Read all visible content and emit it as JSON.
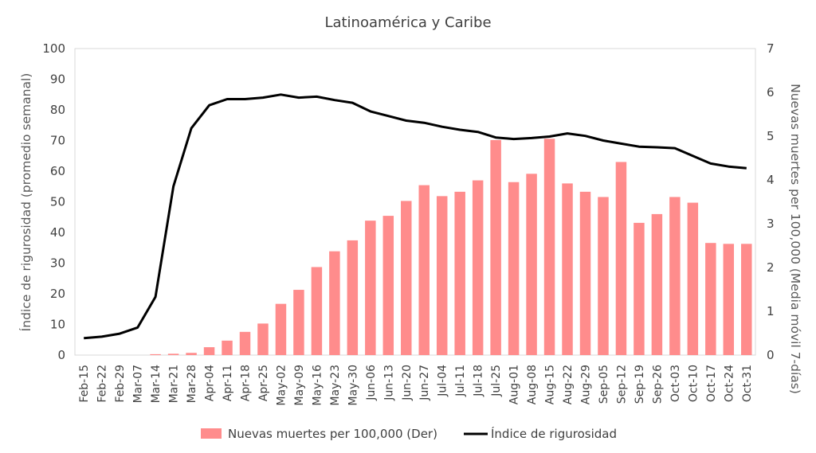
{
  "chart_data": {
    "type": "bar",
    "title": "Latinoamérica y Caribe",
    "ylabel_left": "Índice de rigurosidad (promedio semanal)",
    "ylabel_right": "Nuevas muertes per 100,000 (Media móvil 7-días)",
    "ylim_left": [
      0,
      100
    ],
    "ylim_right": [
      0,
      7
    ],
    "yticks_left": [
      "0",
      "10",
      "20",
      "30",
      "40",
      "50",
      "60",
      "70",
      "80",
      "90",
      "100"
    ],
    "yticks_right": [
      "0",
      "1",
      "2",
      "3",
      "4",
      "5",
      "6",
      "7"
    ],
    "categories": [
      "Feb-15",
      "Feb-22",
      "Feb-29",
      "Mar-07",
      "Mar-14",
      "Mar-21",
      "Mar-28",
      "Apr-04",
      "Apr-11",
      "Apr-18",
      "Apr-25",
      "May-02",
      "May-09",
      "May-16",
      "May-23",
      "May-30",
      "Jun-06",
      "Jun-13",
      "Jun-20",
      "Jun-27",
      "Jul-04",
      "Jul-11",
      "Jul-18",
      "Jul-25",
      "Aug-01",
      "Aug-08",
      "Aug-15",
      "Aug-22",
      "Aug-29",
      "Sep-05",
      "Sep-12",
      "Sep-19",
      "Sep-26",
      "Oct-03",
      "Oct-10",
      "Oct-17",
      "Oct-24",
      "Oct-31"
    ],
    "series": [
      {
        "name": "Nuevas muertes per 100,000 (Der)",
        "type": "bar",
        "axis": "right",
        "color": "#ff8c8c",
        "values": [
          0,
          0,
          0,
          0,
          0.02,
          0.03,
          0.05,
          0.18,
          0.33,
          0.53,
          0.72,
          1.17,
          1.49,
          2.01,
          2.37,
          2.62,
          3.07,
          3.18,
          3.52,
          3.88,
          3.63,
          3.73,
          3.99,
          4.91,
          3.95,
          4.14,
          4.94,
          3.92,
          3.73,
          3.61,
          4.41,
          3.02,
          3.22,
          3.61,
          3.48,
          2.56,
          2.54,
          2.54
        ]
      },
      {
        "name": "Índice de rigurosidad",
        "type": "line",
        "axis": "left",
        "color": "#000000",
        "values": [
          5.5,
          6,
          7,
          9,
          19,
          55,
          74,
          81.5,
          83.5,
          83.5,
          84,
          85,
          84,
          84.3,
          83.2,
          82.3,
          79.5,
          78,
          76.5,
          75.8,
          74.5,
          73.5,
          72.8,
          71,
          70.5,
          70.8,
          71.3,
          72.3,
          71.5,
          70,
          69,
          68,
          67.8,
          67.5,
          65,
          62.5,
          61.5,
          61
        ]
      }
    ],
    "grid": false,
    "legend_position": "bottom"
  }
}
